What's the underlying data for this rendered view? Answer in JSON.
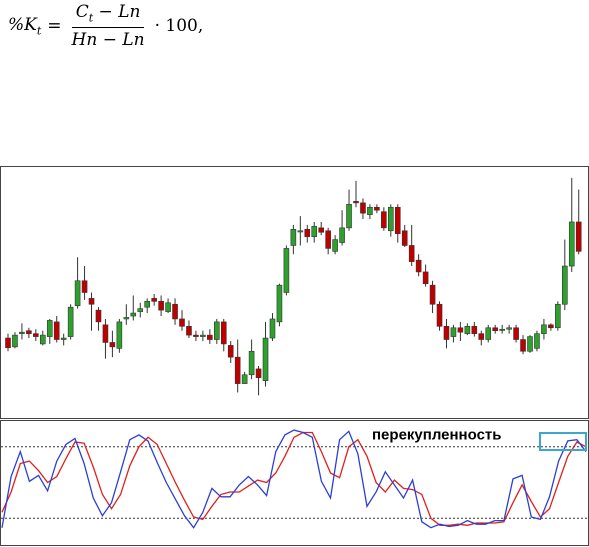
{
  "formula": {
    "lhs": "%K",
    "lhs_sub": "t",
    "eq": "=",
    "num_c": "C",
    "num_sub": "t",
    "num_rest": " − Ln",
    "den": "Hn − Ln",
    "tail": "· 100,"
  },
  "colors": {
    "bull": "#2ea02e",
    "bear": "#c00000",
    "k_line": "#2b3fd6",
    "d_line": "#e0201b",
    "box": "#3aa7d0"
  },
  "chart_data": [
    {
      "type": "candlestick",
      "title": "",
      "grid": false,
      "candles": [
        [
          143.5,
          140.2,
          145,
          139
        ],
        [
          140.5,
          144.5,
          145.5,
          140
        ],
        [
          145,
          145.5,
          148.5,
          143
        ],
        [
          146,
          145,
          147,
          143.5
        ],
        [
          145,
          144,
          146.5,
          142.5
        ],
        [
          141.5,
          144.5,
          146,
          141
        ],
        [
          144,
          149.5,
          150,
          141.5
        ],
        [
          149,
          143,
          151,
          142
        ],
        [
          143,
          143.5,
          145,
          141
        ],
        [
          144,
          154,
          155,
          143
        ],
        [
          154.5,
          163,
          171,
          153.5
        ],
        [
          163,
          159,
          168,
          156.5
        ],
        [
          157,
          155,
          159,
          146
        ],
        [
          153,
          149,
          154,
          146
        ],
        [
          148,
          142,
          150,
          136.5
        ],
        [
          142,
          140.5,
          146,
          137
        ],
        [
          140,
          149,
          150,
          138.5
        ],
        [
          150,
          150.5,
          155,
          148
        ],
        [
          151,
          152,
          158,
          149.5
        ],
        [
          152.5,
          153.5,
          155.5,
          150.5
        ],
        [
          154,
          156,
          157,
          152
        ],
        [
          157,
          156,
          158.5,
          154.5
        ],
        [
          156,
          153,
          158,
          151
        ],
        [
          152.5,
          155.5,
          157,
          152
        ],
        [
          155,
          150,
          157,
          148
        ],
        [
          150,
          147.5,
          153,
          146
        ],
        [
          147.5,
          144.5,
          149.5,
          143.5
        ],
        [
          144.5,
          144,
          146,
          142.5
        ],
        [
          144,
          144.5,
          146,
          142.5
        ],
        [
          144.5,
          143,
          146.5,
          141.5
        ],
        [
          143,
          149,
          150,
          141.5
        ],
        [
          149,
          141.5,
          150,
          139
        ],
        [
          141,
          137,
          142.5,
          135
        ],
        [
          137,
          128,
          143,
          125
        ],
        [
          128,
          131,
          132,
          128
        ],
        [
          131,
          139,
          143,
          129.5
        ],
        [
          133,
          130,
          134,
          124
        ],
        [
          129,
          143.5,
          149,
          127
        ],
        [
          143.5,
          150,
          152,
          142.5
        ],
        [
          149,
          161.5,
          162,
          147.5
        ],
        [
          159,
          174,
          175,
          158
        ],
        [
          175,
          180.5,
          182,
          172
        ],
        [
          180,
          180,
          185,
          175
        ],
        [
          180.5,
          178,
          182,
          176
        ],
        [
          178,
          181.5,
          183,
          176
        ],
        [
          181,
          179.5,
          183,
          178.5
        ],
        [
          180,
          174,
          181,
          172
        ],
        [
          173,
          177,
          178.5,
          172
        ],
        [
          176,
          181,
          187,
          175
        ],
        [
          181,
          189,
          194,
          180
        ],
        [
          190,
          189.5,
          197,
          188
        ],
        [
          189.5,
          186,
          191,
          184
        ],
        [
          185.5,
          188,
          189,
          184
        ],
        [
          188,
          187,
          189,
          186
        ],
        [
          186.5,
          181,
          188,
          180
        ],
        [
          180,
          188,
          189,
          178
        ],
        [
          188,
          179,
          189,
          176
        ],
        [
          180,
          175,
          182,
          174.5
        ],
        [
          175,
          169.5,
          182,
          168
        ],
        [
          170,
          166,
          172,
          164.5
        ],
        [
          166,
          162,
          168.5,
          161
        ],
        [
          161.5,
          155,
          163,
          152
        ],
        [
          155,
          147.5,
          156,
          146
        ],
        [
          147.5,
          143,
          150,
          140
        ],
        [
          144,
          147,
          148,
          142
        ],
        [
          147,
          145.5,
          149,
          142.5
        ],
        [
          145,
          147.5,
          148.5,
          144.5
        ],
        [
          147.5,
          145,
          149,
          144
        ],
        [
          145,
          143,
          146,
          141
        ],
        [
          143,
          147,
          148,
          142
        ],
        [
          147,
          146,
          148,
          145
        ],
        [
          146.5,
          146.5,
          148,
          145
        ],
        [
          146.5,
          147,
          148,
          145
        ],
        [
          147,
          143,
          148,
          142
        ],
        [
          143,
          139,
          144.5,
          138
        ],
        [
          139,
          144,
          144.5,
          138.5
        ],
        [
          140,
          145,
          146,
          139
        ],
        [
          145,
          148,
          150,
          143
        ],
        [
          148,
          147,
          148.5,
          146
        ],
        [
          147,
          155,
          156,
          146
        ],
        [
          155,
          168,
          177,
          153
        ],
        [
          168,
          183,
          198,
          166
        ],
        [
          183,
          173,
          194,
          172
        ]
      ],
      "ylim": [
        118,
        200
      ]
    },
    {
      "type": "line",
      "title": "",
      "grid": false,
      "annotation": "перекупленность",
      "levels": [
        80,
        20
      ],
      "ylim": [
        0,
        100
      ],
      "series": [
        {
          "values": [
            12,
            55,
            76,
            51,
            56,
            43,
            68,
            82,
            87,
            66,
            37,
            22,
            33,
            59,
            86,
            90,
            85,
            67,
            50,
            36,
            22,
            12,
            25,
            45,
            38,
            38,
            48,
            55,
            48,
            39,
            76,
            90,
            94,
            92,
            88,
            51,
            37,
            86,
            93,
            74,
            30,
            42,
            59,
            48,
            37,
            52,
            17,
            12,
            15,
            13,
            14,
            18,
            15,
            15,
            18,
            18,
            53,
            56,
            21,
            19,
            38,
            68,
            85,
            86,
            76
          ]
        },
        {
          "values": [
            25,
            42,
            66,
            68,
            60,
            50,
            55,
            70,
            84,
            83,
            63,
            40,
            28,
            40,
            64,
            80,
            88,
            82,
            66,
            50,
            35,
            21,
            19,
            30,
            40,
            42,
            42,
            47,
            52,
            50,
            58,
            72,
            88,
            92,
            92,
            76,
            58,
            54,
            80,
            86,
            72,
            50,
            42,
            52,
            45,
            44,
            40,
            20,
            14,
            14,
            15,
            14,
            16,
            16,
            16,
            17,
            33,
            48,
            34,
            21,
            28,
            50,
            72,
            84,
            80
          ]
        }
      ]
    }
  ]
}
